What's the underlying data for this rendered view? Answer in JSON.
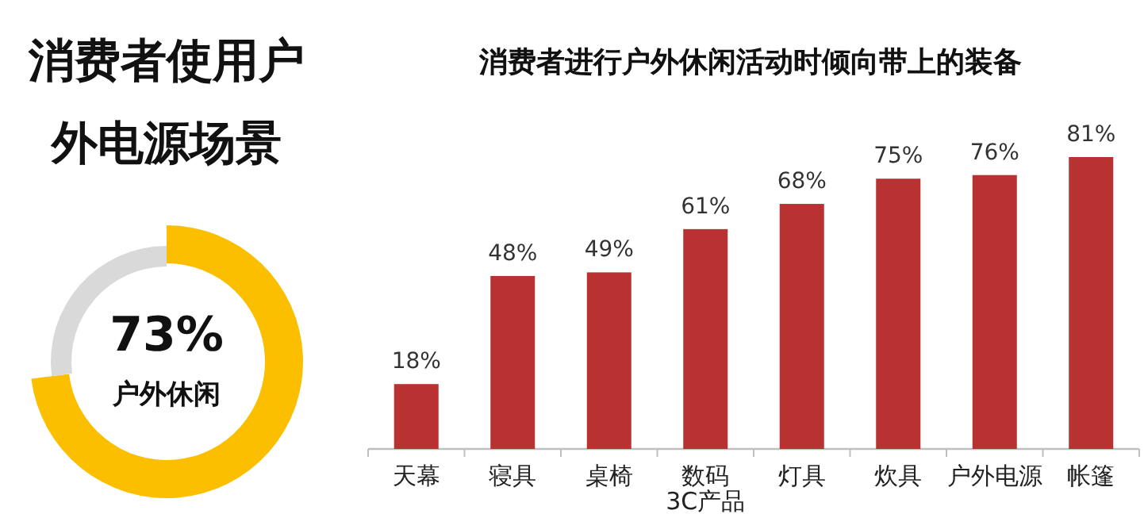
{
  "chart_data": [
    {
      "type": "donut",
      "title": "消费者使用户外电源场景",
      "categories": [
        "户外休闲",
        null
      ],
      "values": [
        73,
        27
      ],
      "colors": [
        "#fbbf00",
        "#d9d9d9"
      ],
      "value_labels": [
        "73%",
        null
      ]
    },
    {
      "type": "bar",
      "title": "消费者进行户外休闲活动时倾向带上的装备",
      "categories": [
        "天幕",
        "寝具",
        "桌椅",
        "数码3C产品",
        "灯具",
        "炊具",
        "户外电源",
        "帐篷"
      ],
      "values": [
        18,
        48,
        49,
        61,
        68,
        75,
        76,
        81
      ],
      "color": "#b83232",
      "value_labels": [
        "18%",
        "48%",
        "49%",
        "61%",
        "68%",
        "75%",
        "76%",
        "81%"
      ]
    }
  ]
}
